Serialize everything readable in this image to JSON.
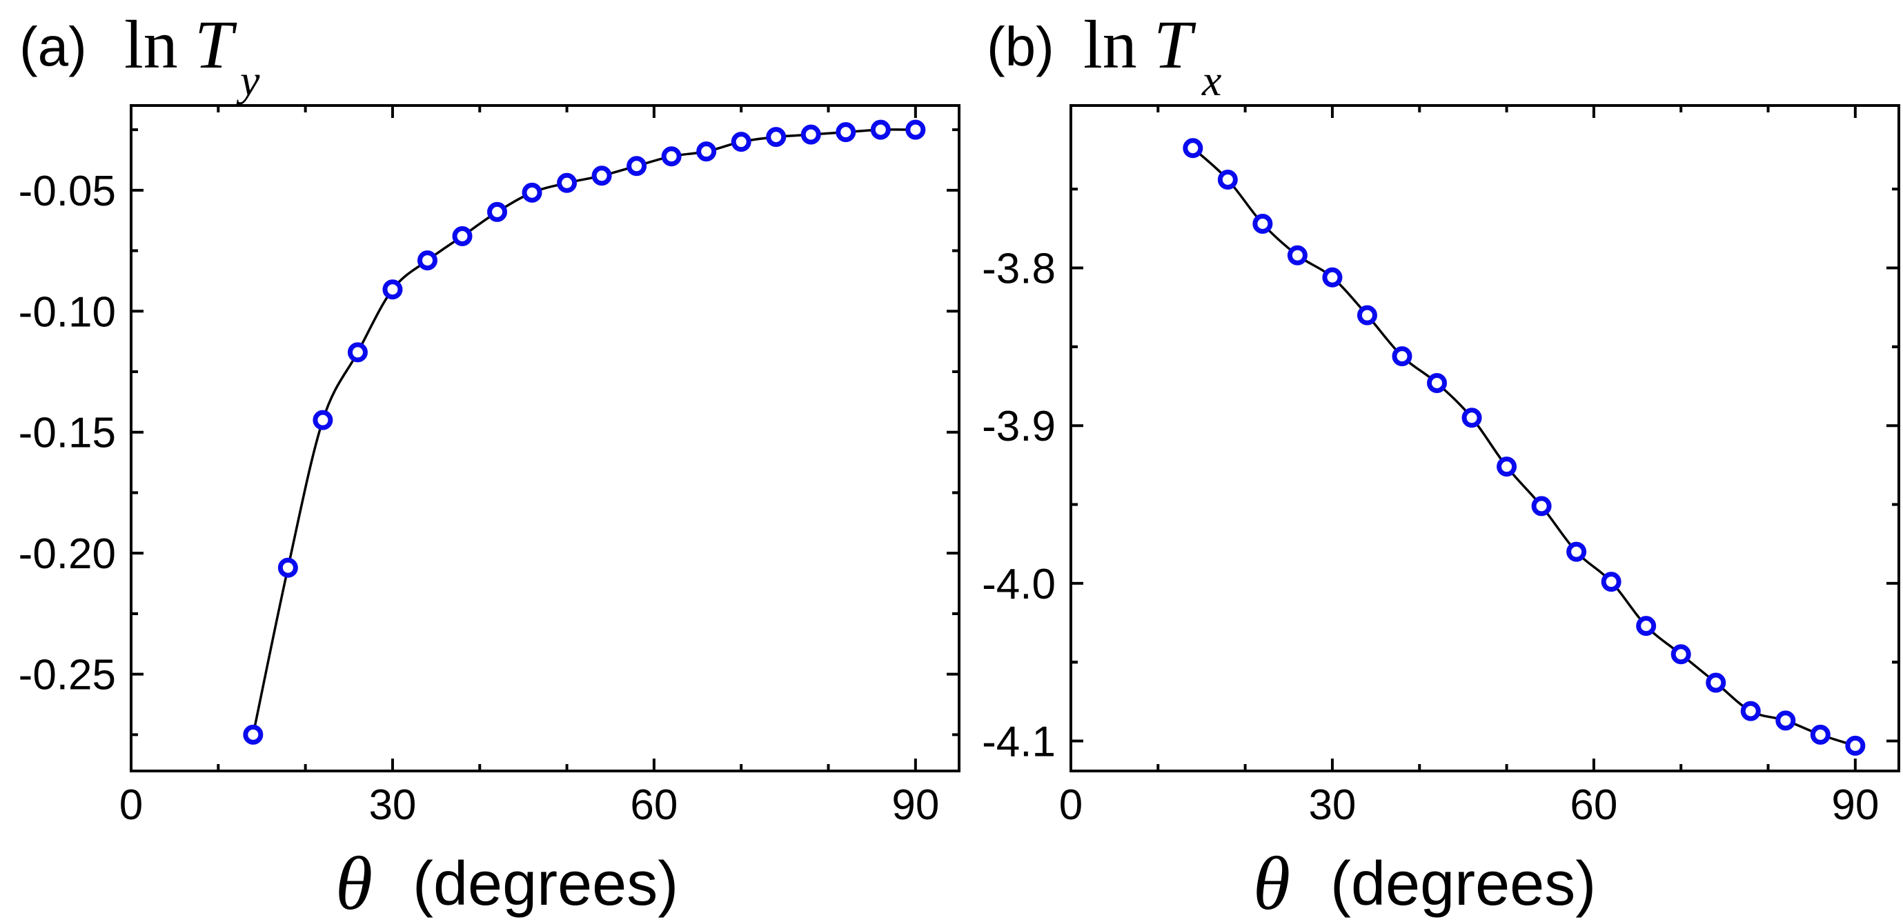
{
  "chart_data": [
    {
      "type": "line",
      "panel_label": "(a)",
      "title_prefix": "ln",
      "title_var": "T",
      "title_sub": "y",
      "xlabel_symbol": "θ",
      "xlabel_unit": "(degrees)",
      "xlim": [
        0,
        95
      ],
      "ylim": [
        -0.29,
        -0.015
      ],
      "xticks": [
        0,
        30,
        60,
        90
      ],
      "xtick_labels": [
        "0",
        "30",
        "60",
        "90"
      ],
      "yticks": [
        -0.05,
        -0.1,
        -0.15,
        -0.2,
        -0.25
      ],
      "ytick_labels": [
        "-0.05",
        "-0.10",
        "-0.15",
        "-0.20",
        "-0.25"
      ],
      "marker_color": "#0a0aee",
      "line_color": "#000000",
      "series": [
        {
          "name": "ln T_y",
          "x": [
            14,
            18,
            22,
            26,
            30,
            34,
            38,
            42,
            46,
            50,
            54,
            58,
            62,
            66,
            70,
            74,
            78,
            82,
            86,
            90
          ],
          "y": [
            -0.275,
            -0.206,
            -0.145,
            -0.117,
            -0.091,
            -0.079,
            -0.069,
            -0.059,
            -0.051,
            -0.047,
            -0.044,
            -0.04,
            -0.036,
            -0.034,
            -0.03,
            -0.028,
            -0.027,
            -0.026,
            -0.025,
            -0.025
          ]
        }
      ]
    },
    {
      "type": "line",
      "panel_label": "(b)",
      "title_prefix": "ln",
      "title_var": "T",
      "title_sub": "x",
      "xlabel_symbol": "θ",
      "xlabel_unit": "(degrees)",
      "xlim": [
        0,
        95
      ],
      "ylim": [
        -4.119,
        -3.697
      ],
      "xticks": [
        0,
        30,
        60,
        90
      ],
      "xtick_labels": [
        "0",
        "30",
        "60",
        "90"
      ],
      "yticks": [
        -3.8,
        -3.9,
        -4.0,
        -4.1
      ],
      "ytick_labels": [
        "-3.8",
        "-3.9",
        "-4.0",
        "-4.1"
      ],
      "marker_color": "#0a0aee",
      "line_color": "#000000",
      "series": [
        {
          "name": "ln T_x",
          "x": [
            14,
            18,
            22,
            26,
            30,
            34,
            38,
            42,
            46,
            50,
            54,
            58,
            62,
            66,
            70,
            74,
            78,
            82,
            86,
            90
          ],
          "y": [
            -3.724,
            -3.744,
            -3.772,
            -3.792,
            -3.806,
            -3.83,
            -3.856,
            -3.873,
            -3.895,
            -3.926,
            -3.951,
            -3.98,
            -3.999,
            -4.027,
            -4.045,
            -4.063,
            -4.081,
            -4.087,
            -4.096,
            -4.103
          ]
        }
      ]
    }
  ]
}
